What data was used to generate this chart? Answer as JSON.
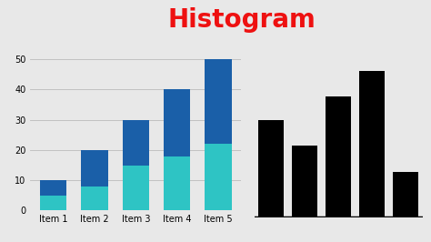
{
  "title": "Histogram",
  "title_color": "#EE1111",
  "title_fontsize": 20,
  "title_fontweight": "bold",
  "categories": [
    "Item 1",
    "Item 2",
    "Item 3",
    "Item 4",
    "Item 5"
  ],
  "bottom_values": [
    5,
    8,
    15,
    18,
    22
  ],
  "top_values": [
    5,
    12,
    15,
    22,
    28
  ],
  "color_bottom": "#2EC4C4",
  "color_top": "#1A5FA8",
  "ylim": [
    0,
    52
  ],
  "yticks": [
    0,
    10,
    20,
    30,
    40,
    50
  ],
  "background_color": "#E8E8E8",
  "black_bars": [
    34,
    25,
    42,
    51,
    16
  ],
  "grid_color": "#BBBBBB",
  "bar_width": 0.65,
  "label_fontsize": 7
}
